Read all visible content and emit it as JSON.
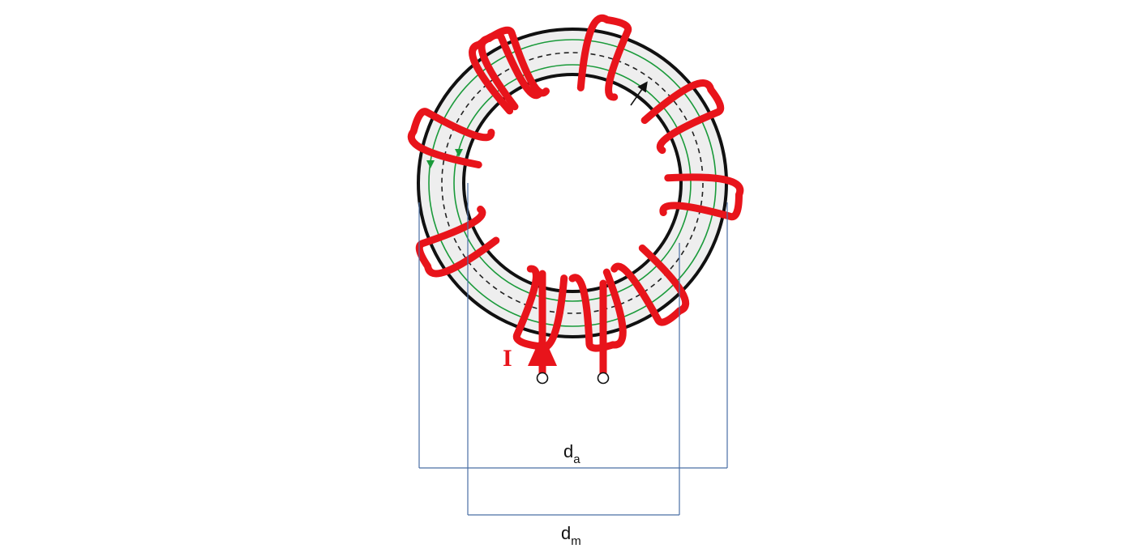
{
  "labels": {
    "current": "I",
    "outer_diameter_base": "d",
    "outer_diameter_sub": "a",
    "mean_diameter_base": "d",
    "mean_diameter_sub": "m"
  },
  "colors": {
    "winding": "#e8141b",
    "core_fill": "#eeeeee",
    "core_outline": "#111111",
    "flux_lines": "#1a9a3a",
    "mean_path": "#222222",
    "dimension_lines": "#4a6fa5",
    "background": "#ffffff"
  },
  "icons": {
    "current_arrow": "arrow-up-icon",
    "radius_arrow": "arrow-diagonal-icon",
    "flux_arrows": "arrow-up-icon",
    "terminals": "circle-terminal-icon"
  }
}
